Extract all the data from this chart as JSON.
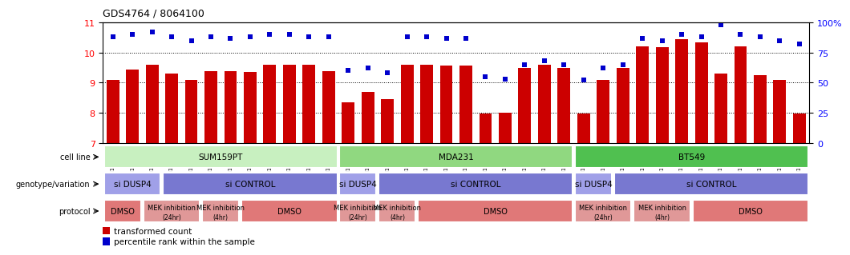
{
  "title": "GDS4764 / 8064100",
  "samples": [
    "GSM1024707",
    "GSM1024708",
    "GSM1024709",
    "GSM1024713",
    "GSM1024714",
    "GSM1024715",
    "GSM1024710",
    "GSM1024711",
    "GSM1024712",
    "GSM1024704",
    "GSM1024705",
    "GSM1024706",
    "GSM1024695",
    "GSM1024696",
    "GSM1024697",
    "GSM1024701",
    "GSM1024702",
    "GSM1024703",
    "GSM1024698",
    "GSM1024699",
    "GSM1024700",
    "GSM1024692",
    "GSM1024693",
    "GSM1024694",
    "GSM1024719",
    "GSM1024720",
    "GSM1024721",
    "GSM1024725",
    "GSM1024726",
    "GSM1024727",
    "GSM1024722",
    "GSM1024723",
    "GSM1024724",
    "GSM1024716",
    "GSM1024717",
    "GSM1024718"
  ],
  "bar_values": [
    9.1,
    9.45,
    9.6,
    9.3,
    9.1,
    9.38,
    9.38,
    9.35,
    9.6,
    9.6,
    9.6,
    9.38,
    8.35,
    8.68,
    8.45,
    9.6,
    9.6,
    9.58,
    9.58,
    7.98,
    8.0,
    9.48,
    9.6,
    9.48,
    7.98,
    9.1,
    9.48,
    10.2,
    10.18,
    10.45,
    10.35,
    9.3,
    10.2,
    9.25,
    9.1,
    7.98
  ],
  "dot_values": [
    88,
    90,
    92,
    88,
    85,
    88,
    87,
    88,
    90,
    90,
    88,
    88,
    60,
    62,
    58,
    88,
    88,
    87,
    87,
    55,
    53,
    65,
    68,
    65,
    52,
    62,
    65,
    87,
    85,
    90,
    88,
    98,
    90,
    88,
    85,
    82
  ],
  "bar_color": "#cc0000",
  "dot_color": "#0000cc",
  "ylim_left": [
    7,
    11
  ],
  "ylim_right": [
    0,
    100
  ],
  "yticks_left": [
    7,
    8,
    9,
    10,
    11
  ],
  "yticks_right": [
    0,
    25,
    50,
    75,
    100
  ],
  "ytick_labels_right": [
    "0",
    "25",
    "50",
    "75",
    "100%"
  ],
  "cell_line_groups": [
    {
      "label": "SUM159PT",
      "start": 0,
      "end": 12,
      "color": "#c8f0c0"
    },
    {
      "label": "MDA231",
      "start": 12,
      "end": 24,
      "color": "#90d880"
    },
    {
      "label": "BT549",
      "start": 24,
      "end": 36,
      "color": "#50c050"
    }
  ],
  "genotype_groups": [
    {
      "label": "si DUSP4",
      "start": 0,
      "end": 3,
      "color": "#a0a0e8"
    },
    {
      "label": "si CONTROL",
      "start": 3,
      "end": 12,
      "color": "#7878d0"
    },
    {
      "label": "si DUSP4",
      "start": 12,
      "end": 14,
      "color": "#a0a0e8"
    },
    {
      "label": "si CONTROL",
      "start": 14,
      "end": 24,
      "color": "#7878d0"
    },
    {
      "label": "si DUSP4",
      "start": 24,
      "end": 26,
      "color": "#a0a0e8"
    },
    {
      "label": "si CONTROL",
      "start": 26,
      "end": 36,
      "color": "#7878d0"
    }
  ],
  "protocol_groups": [
    {
      "label": "DMSO",
      "start": 0,
      "end": 2,
      "color": "#e07878"
    },
    {
      "label": "MEK inhibition\n(24hr)",
      "start": 2,
      "end": 5,
      "color": "#e09898"
    },
    {
      "label": "MEK inhibition\n(4hr)",
      "start": 5,
      "end": 7,
      "color": "#e09898"
    },
    {
      "label": "DMSO",
      "start": 7,
      "end": 12,
      "color": "#e07878"
    },
    {
      "label": "MEK inhibition\n(24hr)",
      "start": 12,
      "end": 14,
      "color": "#e09898"
    },
    {
      "label": "MEK inhibition\n(4hr)",
      "start": 14,
      "end": 16,
      "color": "#e09898"
    },
    {
      "label": "DMSO",
      "start": 16,
      "end": 24,
      "color": "#e07878"
    },
    {
      "label": "MEK inhibition\n(24hr)",
      "start": 24,
      "end": 27,
      "color": "#e09898"
    },
    {
      "label": "MEK inhibition\n(4hr)",
      "start": 27,
      "end": 30,
      "color": "#e09898"
    },
    {
      "label": "DMSO",
      "start": 30,
      "end": 36,
      "color": "#e07878"
    }
  ],
  "row_labels": [
    "cell line",
    "genotype/variation",
    "protocol"
  ]
}
